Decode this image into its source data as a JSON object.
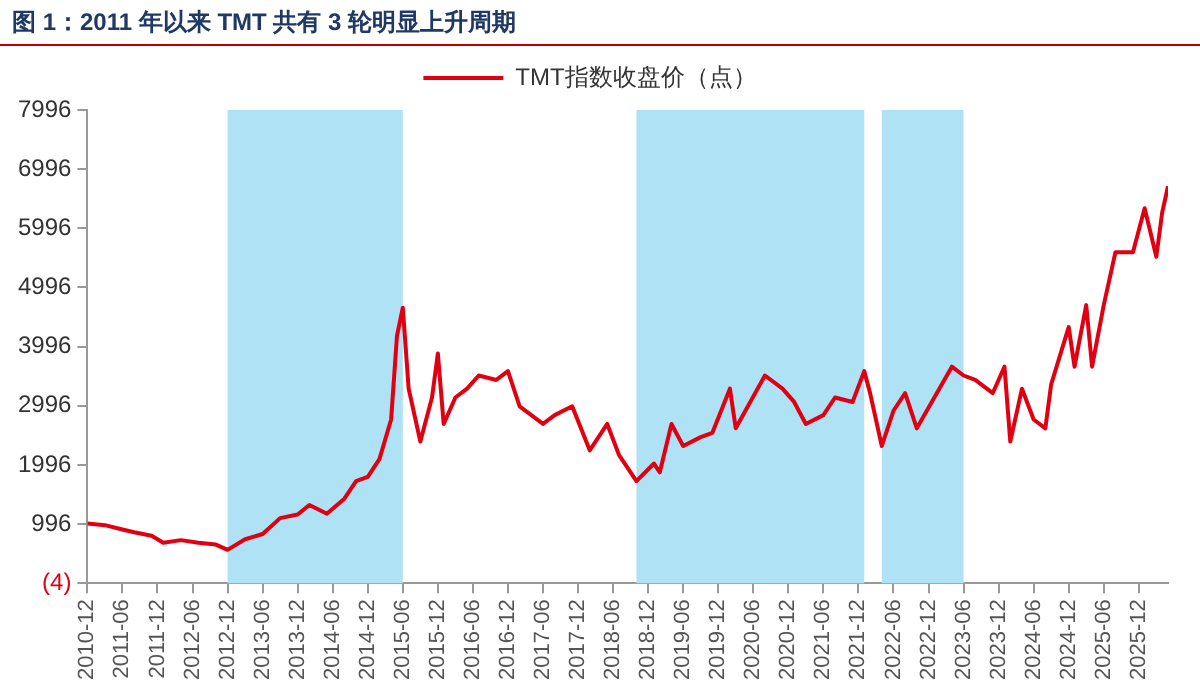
{
  "chart_data": {
    "type": "line",
    "title": "图 1：2011 年以来 TMT 共有 3 轮明显上升周期",
    "x": [
      "2010-12",
      "2011-03",
      "2011-06",
      "2011-08",
      "2011-11",
      "2012-01",
      "2012-04",
      "2012-07",
      "2012-10",
      "2012-12",
      "2013-03",
      "2013-06",
      "2013-09",
      "2013-12",
      "2014-02",
      "2014-05",
      "2014-08",
      "2014-10",
      "2014-12",
      "2015-02",
      "2015-04",
      "2015-05",
      "2015-06",
      "2015-07",
      "2015-09",
      "2015-11",
      "2015-12",
      "2016-01",
      "2016-03",
      "2016-05",
      "2016-07",
      "2016-10",
      "2016-12",
      "2017-02",
      "2017-06",
      "2017-08",
      "2017-11",
      "2018-02",
      "2018-05",
      "2018-07",
      "2018-10",
      "2019-01",
      "2019-02",
      "2019-04",
      "2019-06",
      "2019-09",
      "2019-11",
      "2020-02",
      "2020-03",
      "2020-08",
      "2020-11",
      "2021-01",
      "2021-03",
      "2021-06",
      "2021-08",
      "2021-11",
      "2022-01",
      "2022-02",
      "2022-04",
      "2022-06",
      "2022-08",
      "2022-10",
      "2023-01",
      "2023-04",
      "2023-06",
      "2023-08",
      "2023-11",
      "2024-01",
      "2024-02",
      "2024-04",
      "2024-06",
      "2024-08",
      "2024-09",
      "2024-12",
      "2025-01",
      "2025-03",
      "2025-04",
      "2025-06",
      "2025-08",
      "2025-11",
      "2026-01",
      "2026-03",
      "2026-04",
      "2026-05"
    ],
    "series": [
      {
        "name": "TMT指数收盘价（点）",
        "color": "#e00012",
        "values": [
          1008,
          978,
          904,
          859,
          800,
          680,
          725,
          680,
          650,
          561,
          740,
          829,
          1097,
          1157,
          1320,
          1172,
          1425,
          1722,
          1796,
          2094,
          2764,
          4177,
          4653,
          3285,
          2392,
          3136,
          3880,
          2689,
          3136,
          3285,
          3508,
          3433,
          3582,
          2987,
          2689,
          2838,
          2987,
          2243,
          2689,
          2168,
          1722,
          2020,
          1871,
          2689,
          2317,
          2466,
          2540,
          3285,
          2615,
          3508,
          3285,
          3061,
          2689,
          2838,
          3136,
          3061,
          3582,
          3210,
          2317,
          2912,
          3210,
          2615,
          3136,
          3657,
          3508,
          3433,
          3210,
          3657,
          2392,
          3285,
          2764,
          2615,
          3359,
          4326,
          3657,
          4698,
          3657,
          4698,
          5591,
          5591,
          6335,
          5516,
          6261,
          6707
        ]
      }
    ],
    "xlim": [
      "2010-12",
      "2026-05"
    ],
    "xticks": [
      "2010-12",
      "2011-06",
      "2011-12",
      "2012-06",
      "2012-12",
      "2013-06",
      "2013-12",
      "2014-06",
      "2014-12",
      "2015-06",
      "2015-12",
      "2016-06",
      "2016-12",
      "2017-06",
      "2017-12",
      "2018-06",
      "2018-12",
      "2019-06",
      "2019-12",
      "2020-06",
      "2020-12",
      "2021-06",
      "2021-12",
      "2022-06",
      "2022-12",
      "2023-06",
      "2023-12",
      "2024-06",
      "2024-12",
      "2025-06",
      "2025-12"
    ],
    "ylim": [
      -4,
      7996
    ],
    "yticks": [
      {
        "value": -4,
        "label": "(4)"
      },
      996,
      1996,
      2996,
      3996,
      4996,
      5996,
      6996,
      7996
    ],
    "bands": [
      {
        "axis": "x",
        "from": "2012-12",
        "to": "2015-06",
        "color": "#b0e2f5"
      },
      {
        "axis": "x",
        "from": "2018-10",
        "to": "2022-01",
        "color": "#b0e2f5"
      },
      {
        "axis": "x",
        "from": "2022-04",
        "to": "2023-06",
        "color": "#b0e2f5"
      }
    ],
    "grid": false,
    "legend": "top",
    "marker": "none",
    "line_style": "solid"
  }
}
